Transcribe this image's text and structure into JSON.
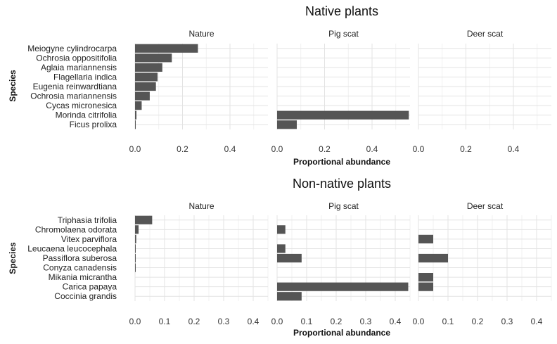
{
  "chart_data": [
    {
      "type": "bar",
      "orientation": "horizontal",
      "title": "Native plants",
      "xlabel": "Proportional abundance",
      "ylabel": "Species",
      "xlim": [
        0,
        0.56
      ],
      "xticks": [
        0,
        0.2,
        0.4
      ],
      "xtick_labels": [
        "0.0",
        "0.2",
        "0.4"
      ],
      "grid": true,
      "categories": [
        "Meiogyne cylindrocarpa",
        "Ochrosia oppositifolia",
        "Aglaia mariannensis",
        "Flagellaria indica",
        "Eugenia reinwardtiana",
        "Ochrosia mariannensis",
        "Cycas micronesica",
        "Morinda citrifolia",
        "Ficus prolixa"
      ],
      "series": [
        {
          "name": "Nature",
          "values": [
            0.265,
            0.155,
            0.115,
            0.095,
            0.088,
            0.062,
            0.028,
            0.006,
            0.003
          ]
        },
        {
          "name": "Pig scat",
          "values": [
            0,
            0,
            0,
            0,
            0,
            0,
            0,
            0.555,
            0.083
          ]
        },
        {
          "name": "Deer scat",
          "values": [
            0,
            0,
            0,
            0,
            0,
            0,
            0,
            0,
            0
          ]
        }
      ]
    },
    {
      "type": "bar",
      "orientation": "horizontal",
      "title": "Non-native plants",
      "xlabel": "Proportional abundance",
      "ylabel": "Species",
      "xlim": [
        0,
        0.45
      ],
      "xticks": [
        0,
        0.1,
        0.2,
        0.3,
        0.4
      ],
      "xtick_labels": [
        "0.0",
        "0.1",
        "0.2",
        "0.3",
        "0.4"
      ],
      "grid": true,
      "categories": [
        "Triphasia trifolia",
        "Chromolaena odorata",
        "Vitex parviflora",
        "Leucaena leucocephala",
        "Passiflora suberosa",
        "Conyza canadensis",
        "Mikania micrantha",
        "Carica papaya",
        "Coccinia grandis"
      ],
      "series": [
        {
          "name": "Nature",
          "values": [
            0.058,
            0.012,
            0.004,
            0.002,
            0.002,
            0.002,
            0,
            0,
            0
          ]
        },
        {
          "name": "Pig scat",
          "values": [
            0,
            0.028,
            0,
            0.028,
            0.083,
            0,
            0,
            0.444,
            0.083
          ]
        },
        {
          "name": "Deer scat",
          "values": [
            0,
            0,
            0.05,
            0,
            0.1,
            0,
            0.05,
            0.05,
            0
          ]
        }
      ]
    }
  ]
}
